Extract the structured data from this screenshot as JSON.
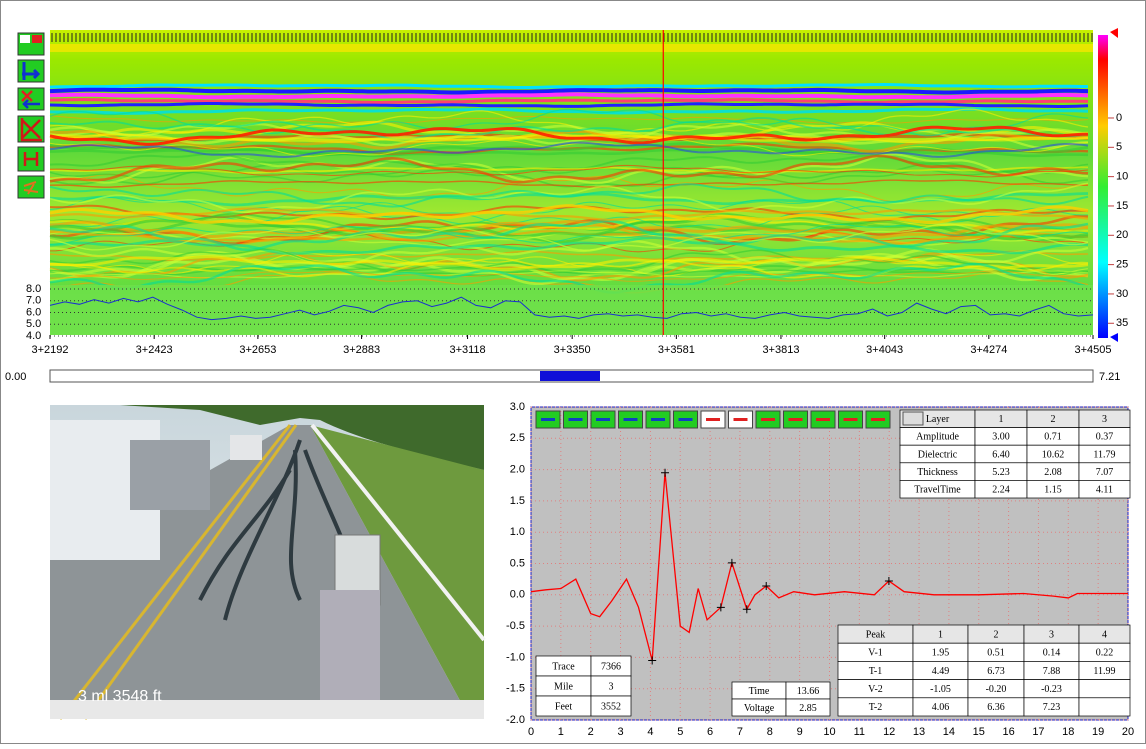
{
  "radargram": {
    "xlim": [
      2192,
      4505
    ],
    "xticks": [
      {
        "value": 2192,
        "label": "3+2192"
      },
      {
        "value": 2423,
        "label": "3+2423"
      },
      {
        "value": 2653,
        "label": "3+2653"
      },
      {
        "value": 2883,
        "label": "3+2883"
      },
      {
        "value": 3118,
        "label": "3+3118"
      },
      {
        "value": 3350,
        "label": "3+3350"
      },
      {
        "value": 3581,
        "label": "3+3581"
      },
      {
        "value": 3813,
        "label": "3+3813"
      },
      {
        "value": 4043,
        "label": "3+4043"
      },
      {
        "value": 4274,
        "label": "3+4274"
      },
      {
        "value": 4505,
        "label": "3+4505"
      }
    ],
    "depth_lim": [
      -15,
      37
    ],
    "depth_ticks": [
      0,
      5,
      10,
      15,
      20,
      25,
      30,
      35
    ]
  },
  "profile": {
    "ylim": [
      4,
      8
    ],
    "color": "#1a2fd0",
    "yticks": [
      {
        "value": 8,
        "label": "8.0"
      },
      {
        "value": 7,
        "label": "7.0"
      },
      {
        "value": 6,
        "label": "6.0"
      },
      {
        "value": 5,
        "label": "5.0"
      },
      {
        "value": 4,
        "label": "4.0"
      }
    ],
    "values": [
      6.6,
      6.9,
      6.7,
      7.1,
      6.8,
      7.2,
      6.9,
      7.3,
      6.7,
      6.2,
      5.6,
      5.4,
      5.5,
      5.7,
      5.5,
      5.6,
      5.9,
      6.2,
      5.8,
      6.1,
      6.6,
      6.4,
      6.0,
      6.6,
      6.9,
      7.0,
      6.5,
      6.8,
      7.3,
      6.6,
      6.4,
      7.0,
      6.9,
      5.8,
      5.6,
      5.7,
      5.5,
      5.8,
      5.9,
      5.7,
      5.8,
      5.6,
      5.5,
      5.9,
      6.0,
      5.7,
      5.9,
      5.6,
      5.5,
      5.8,
      6.0,
      5.7,
      5.6,
      5.5,
      5.8,
      5.9,
      6.3,
      5.7,
      6.0,
      6.8,
      6.3,
      5.9,
      6.5,
      6.6,
      5.8,
      5.9,
      5.7,
      6.2,
      6.6,
      5.9,
      5.7,
      5.8
    ]
  },
  "scrollbar": {
    "min_label": "0.00",
    "max_label": "7.21"
  },
  "video": {
    "caption": "3 ml  3548 ft"
  },
  "waveform": {
    "type": "line",
    "color": "#ff0000",
    "xlim": [
      0,
      20
    ],
    "ylim": [
      -2,
      3
    ],
    "xticks": [
      0,
      1,
      2,
      3,
      4,
      5,
      6,
      7,
      8,
      9,
      10,
      11,
      12,
      13,
      14,
      15,
      16,
      17,
      18,
      19,
      20
    ],
    "yticks": [
      {
        "value": 3,
        "label": "3.0"
      },
      {
        "value": 2.5,
        "label": "2.5"
      },
      {
        "value": 2,
        "label": "2.0"
      },
      {
        "value": 1.5,
        "label": "1.5"
      },
      {
        "value": 1,
        "label": "1.0"
      },
      {
        "value": 0.5,
        "label": "0.5"
      },
      {
        "value": 0,
        "label": "0.0"
      },
      {
        "value": -0.5,
        "label": "-0.5"
      },
      {
        "value": -1,
        "label": "-1.0"
      },
      {
        "value": -1.5,
        "label": "-1.5"
      },
      {
        "value": -2,
        "label": "-2.0"
      }
    ],
    "x": [
      0,
      0.5,
      1.0,
      1.5,
      2.0,
      2.3,
      2.7,
      3.2,
      3.6,
      4.06,
      4.49,
      5.0,
      5.3,
      5.6,
      5.9,
      6.36,
      6.73,
      7.23,
      7.5,
      7.88,
      8.3,
      8.8,
      9.5,
      10.5,
      11.5,
      11.99,
      12.5,
      13.5,
      15.0,
      16.5,
      17.5,
      18.0,
      18.3,
      20.0
    ],
    "values": [
      0.05,
      0.08,
      0.1,
      0.25,
      -0.3,
      -0.35,
      -0.1,
      0.25,
      -0.2,
      -1.05,
      1.95,
      -0.5,
      -0.6,
      0.1,
      -0.4,
      -0.2,
      0.51,
      -0.23,
      0.0,
      0.14,
      -0.05,
      0.05,
      0.0,
      0.05,
      0.0,
      0.22,
      0.05,
      0.0,
      0.0,
      0.02,
      -0.02,
      -0.05,
      0.02,
      0.02
    ]
  },
  "layer_table": {
    "rows": [
      [
        "Layer",
        "1",
        "2",
        "3"
      ],
      [
        "Amplitude",
        "3.00",
        "0.71",
        "0.37"
      ],
      [
        "Dielectric",
        "6.40",
        "10.62",
        "11.79"
      ],
      [
        "Thickness",
        "5.23",
        "2.08",
        "7.07"
      ],
      [
        "TravelTime",
        "2.24",
        "1.15",
        "4.11"
      ]
    ]
  },
  "peak_table": {
    "rows": [
      [
        "Peak",
        "1",
        "2",
        "3",
        "4"
      ],
      [
        "V-1",
        "1.95",
        "0.51",
        "0.14",
        "0.22"
      ],
      [
        "T-1",
        "4.49",
        "6.73",
        "7.88",
        "11.99"
      ],
      [
        "V-2",
        "-1.05",
        "-0.20",
        "-0.23",
        null
      ],
      [
        "T-2",
        "4.06",
        "6.36",
        "7.23",
        null
      ]
    ]
  },
  "info_table": {
    "rows": [
      [
        "Trace",
        "7366"
      ],
      [
        "Mile",
        "3"
      ],
      [
        "Feet",
        "3552"
      ]
    ]
  },
  "time_table": {
    "rows": [
      [
        "Time",
        "13.66"
      ],
      [
        "Voltage",
        "2.85"
      ]
    ]
  }
}
